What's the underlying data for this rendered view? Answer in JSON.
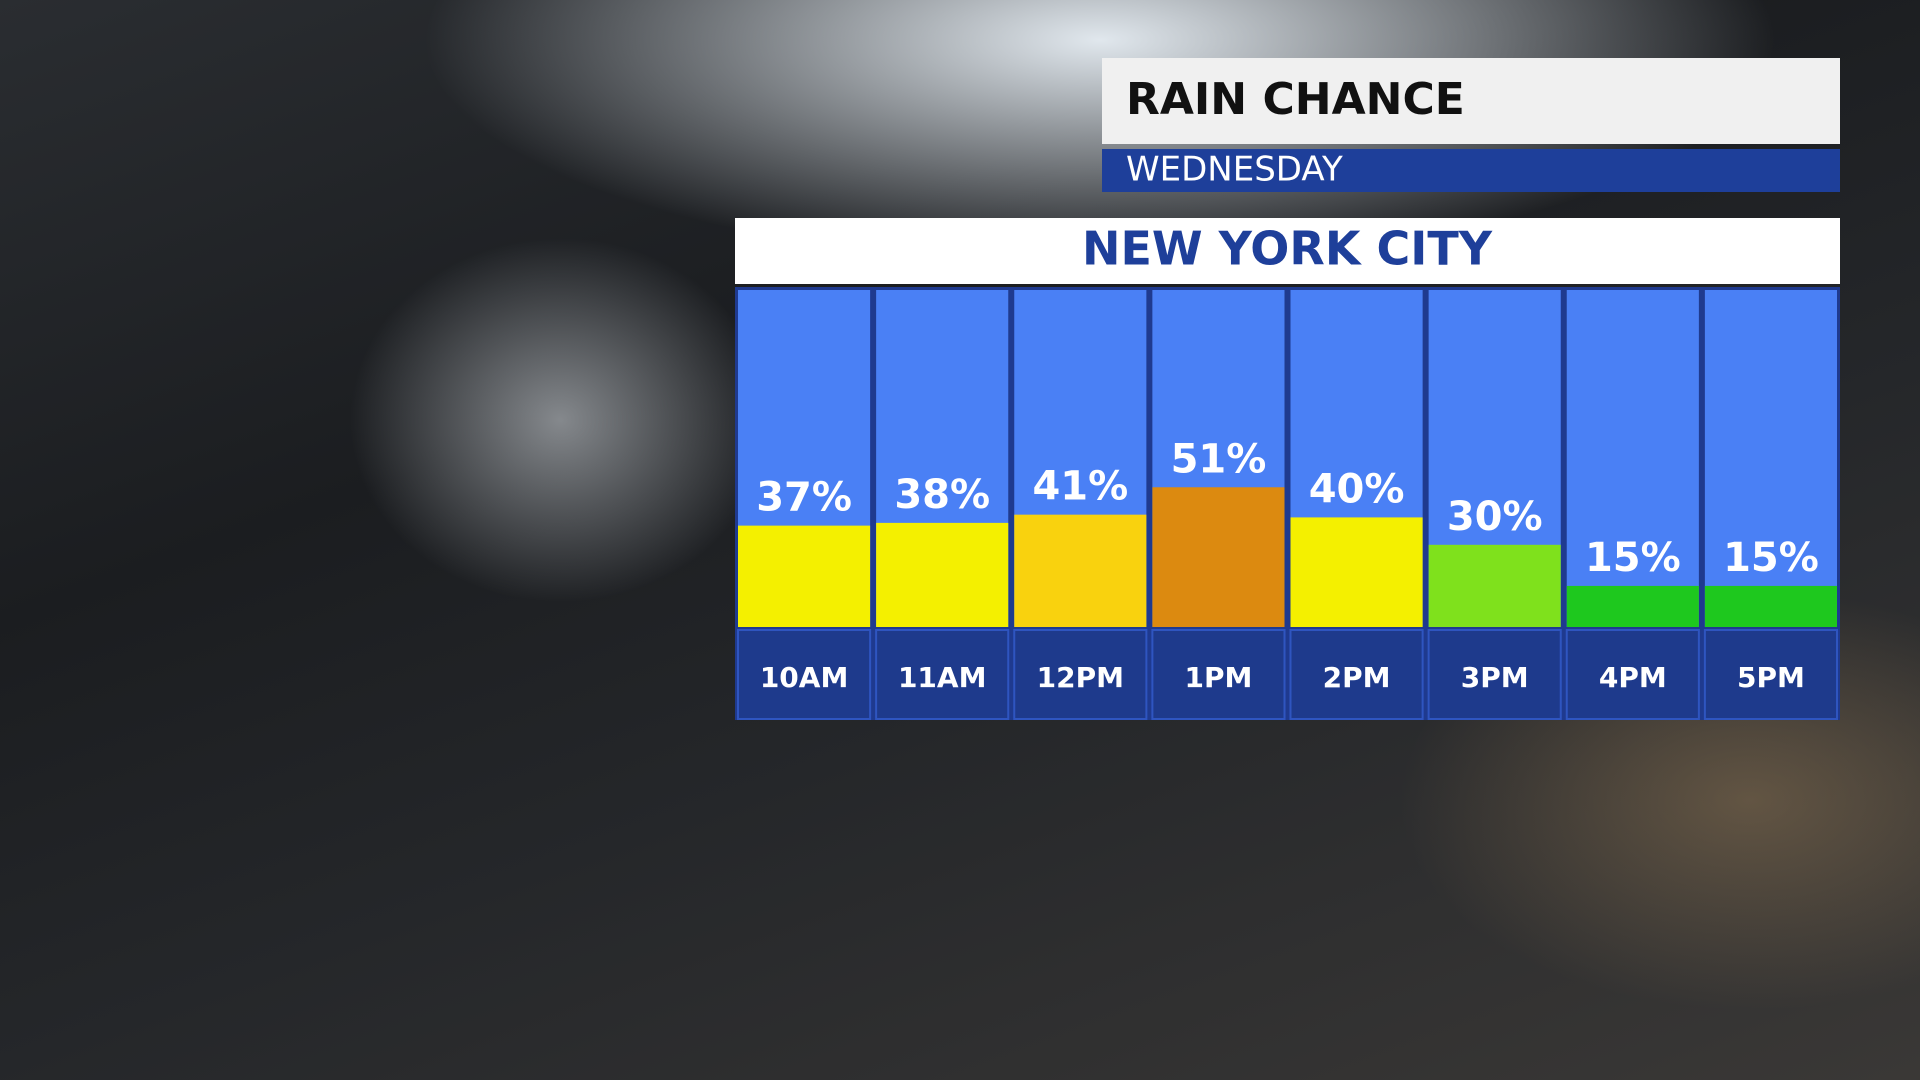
{
  "chart_data": {
    "type": "bar",
    "title": "RAIN CHANCE",
    "subtitle": "WEDNESDAY",
    "location": "NEW YORK CITY",
    "categories": [
      "10AM",
      "11AM",
      "12PM",
      "1PM",
      "2PM",
      "3PM",
      "4PM",
      "5PM"
    ],
    "values": [
      37,
      38,
      41,
      51,
      40,
      30,
      15,
      15
    ],
    "value_labels": [
      "37%",
      "38%",
      "41%",
      "51%",
      "40%",
      "30%",
      "15%",
      "15%"
    ],
    "colors": [
      "#f4f000",
      "#f4f000",
      "#f9d20e",
      "#dc8a10",
      "#f4f000",
      "#7fe11c",
      "#1ec81e",
      "#1ec81e"
    ],
    "ylim": [
      0,
      100
    ]
  }
}
